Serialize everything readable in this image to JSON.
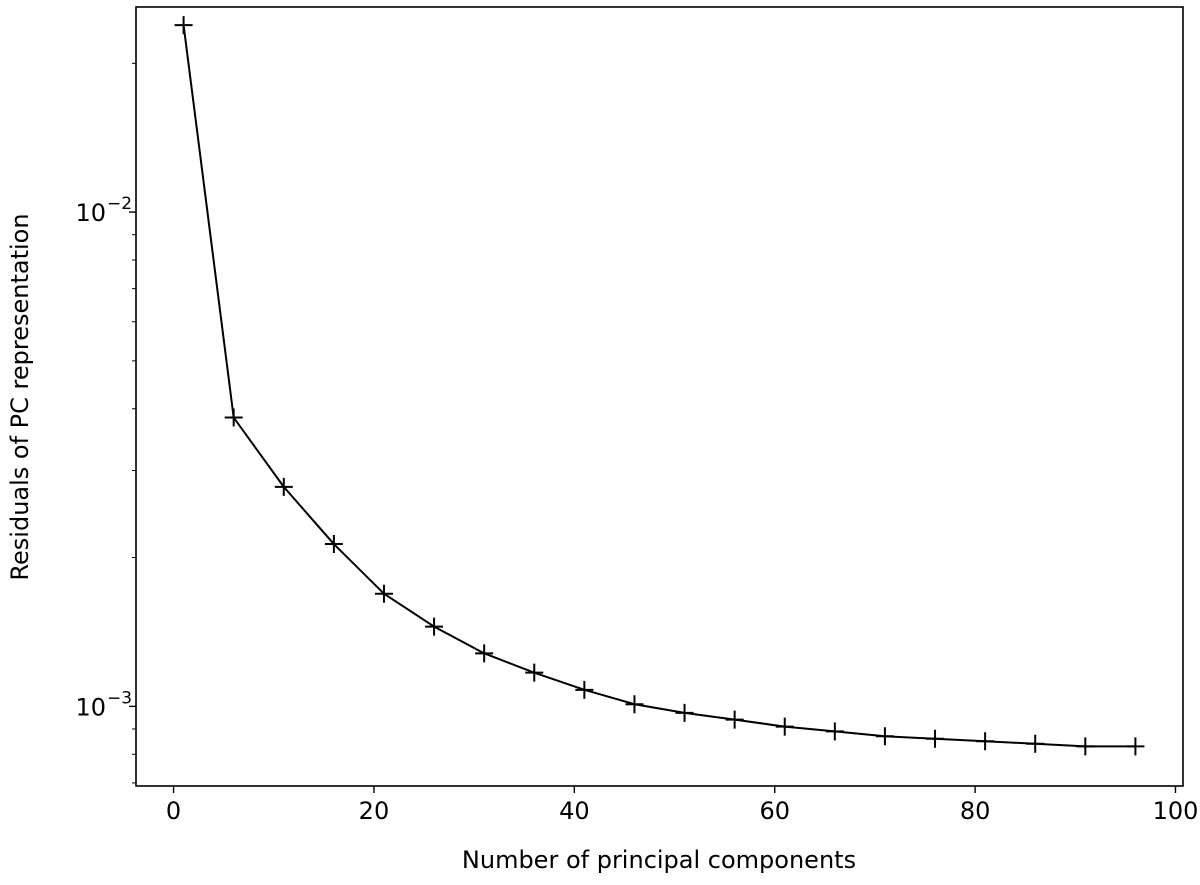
{
  "chart_data": {
    "type": "line",
    "title": "",
    "xlabel": "Number of principal components",
    "ylabel": "Residuals of PC representation",
    "xlim": [
      -3.75,
      100.75
    ],
    "ylim": [
      0.00069,
      0.026
    ],
    "y_scale": "log",
    "grid": false,
    "legend": "none",
    "x_ticks": [
      {
        "value": 0,
        "label": "0"
      },
      {
        "value": 20,
        "label": "20"
      },
      {
        "value": 40,
        "label": "40"
      },
      {
        "value": 60,
        "label": "60"
      },
      {
        "value": 80,
        "label": "80"
      },
      {
        "value": 100,
        "label": "100"
      }
    ],
    "y_ticks": [
      {
        "value": 0.01,
        "base": "10",
        "exponent": "−2"
      },
      {
        "value": 0.001,
        "base": "10",
        "exponent": "−3"
      }
    ],
    "series": [
      {
        "color": "#000000",
        "marker": "plus",
        "x": [
          1,
          6,
          11,
          16,
          21,
          26,
          31,
          36,
          41,
          46,
          51,
          56,
          61,
          66,
          71,
          76,
          81,
          86,
          91,
          96
        ],
        "y": [
          0.0239,
          0.00384,
          0.00278,
          0.00213,
          0.00169,
          0.00145,
          0.00128,
          0.00117,
          0.00108,
          0.00101,
          0.00097,
          0.00094,
          0.00091,
          0.00089,
          0.00087,
          0.00086,
          0.00085,
          0.00084,
          0.00083,
          0.00083
        ]
      }
    ]
  }
}
